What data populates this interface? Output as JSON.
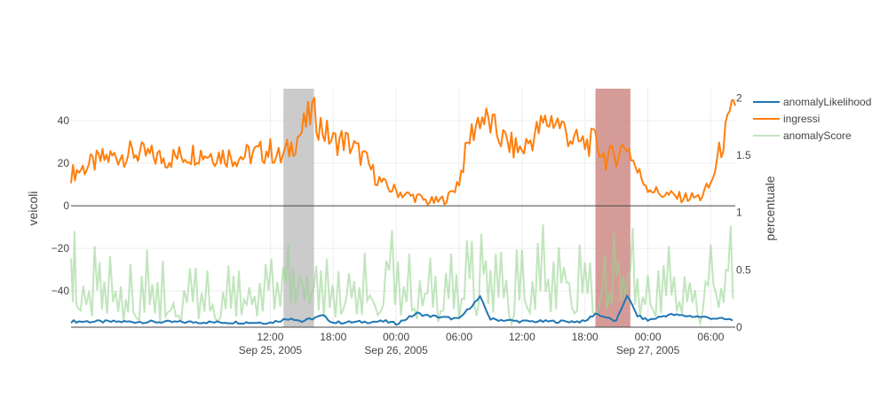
{
  "chart_data": {
    "type": "line",
    "title": "",
    "xlabel": "",
    "ylabel_left": "veicoli",
    "ylabel_right": "percentuale",
    "xlim": [
      "2005-09-24T17:00:00",
      "2005-09-27T08:20:00"
    ],
    "ylim_left": [
      -57,
      55
    ],
    "ylim_right": [
      0,
      2.08
    ],
    "grid": true,
    "legend_position": "top-right",
    "x_ticks": [
      {
        "time": "2005-09-25T12:00:00",
        "label": "12:00",
        "sublabel": "Sep 25, 2005"
      },
      {
        "time": "2005-09-25T18:00:00",
        "label": "18:00",
        "sublabel": ""
      },
      {
        "time": "2005-09-26T00:00:00",
        "label": "00:00",
        "sublabel": "Sep 26, 2005"
      },
      {
        "time": "2005-09-26T06:00:00",
        "label": "06:00",
        "sublabel": ""
      },
      {
        "time": "2005-09-26T12:00:00",
        "label": "12:00",
        "sublabel": ""
      },
      {
        "time": "2005-09-26T18:00:00",
        "label": "18:00",
        "sublabel": ""
      },
      {
        "time": "2005-09-27T00:00:00",
        "label": "00:00",
        "sublabel": "Sep 27, 2005"
      },
      {
        "time": "2005-09-27T06:00:00",
        "label": "06:00",
        "sublabel": ""
      }
    ],
    "y_ticks_left": [
      40,
      20,
      0,
      -20,
      -40
    ],
    "y_ticks_left_labels": [
      "40",
      "20",
      "0",
      "−20",
      "−40"
    ],
    "y_ticks_right": [
      2,
      1.5,
      1,
      0.5,
      0
    ],
    "y_ticks_right_labels": [
      "2",
      "1.5",
      "1",
      "0.5",
      "0"
    ],
    "shaded_regions": [
      {
        "start": "2005-09-25T13:15:00",
        "end": "2005-09-25T16:10:00",
        "color": "#bdbdbd"
      },
      {
        "start": "2005-09-26T19:00:00",
        "end": "2005-09-26T22:20:00",
        "color": "#c9807a"
      }
    ],
    "series": [
      {
        "name": "anomalyLikelihood",
        "axis": "right",
        "color": "#1f77b4",
        "points": [
          [
            "2005-09-24T17:00:00",
            0.05
          ],
          [
            "2005-09-25T12:00:00",
            0.04
          ],
          [
            "2005-09-25T14:00:00",
            0.08
          ],
          [
            "2005-09-25T15:00:00",
            0.05
          ],
          [
            "2005-09-25T17:00:00",
            0.1
          ],
          [
            "2005-09-25T18:00:00",
            0.04
          ],
          [
            "2005-09-25T23:00:00",
            0.05
          ],
          [
            "2005-09-26T00:00:00",
            0.03
          ],
          [
            "2005-09-26T02:00:00",
            0.12
          ],
          [
            "2005-09-26T03:00:00",
            0.1
          ],
          [
            "2005-09-26T06:00:00",
            0.07
          ],
          [
            "2005-09-26T07:00:00",
            0.17
          ],
          [
            "2005-09-26T08:00:00",
            0.26
          ],
          [
            "2005-09-26T09:00:00",
            0.07
          ],
          [
            "2005-09-26T12:00:00",
            0.05
          ],
          [
            "2005-09-26T18:00:00",
            0.05
          ],
          [
            "2005-09-26T19:00:00",
            0.12
          ],
          [
            "2005-09-26T21:00:00",
            0.05
          ],
          [
            "2005-09-26T22:00:00",
            0.28
          ],
          [
            "2005-09-26T23:00:00",
            0.1
          ],
          [
            "2005-09-27T00:00:00",
            0.06
          ],
          [
            "2005-09-27T02:00:00",
            0.11
          ],
          [
            "2005-09-27T05:00:00",
            0.09
          ],
          [
            "2005-09-27T08:20:00",
            0.06
          ]
        ]
      },
      {
        "name": "ingressi",
        "axis": "left",
        "color": "#ff7f0e",
        "points": [
          [
            "2005-09-24T17:00:00",
            15
          ],
          [
            "2005-09-24T20:00:00",
            22
          ],
          [
            "2005-09-24T23:00:00",
            25
          ],
          [
            "2005-09-25T02:00:00",
            22
          ],
          [
            "2005-09-25T05:00:00",
            25
          ],
          [
            "2005-09-25T09:00:00",
            23
          ],
          [
            "2005-09-25T12:00:00",
            26
          ],
          [
            "2005-09-25T13:00:00",
            22
          ],
          [
            "2005-09-25T14:00:00",
            28
          ],
          [
            "2005-09-25T15:00:00",
            35
          ],
          [
            "2005-09-25T16:00:00",
            44
          ],
          [
            "2005-09-25T17:00:00",
            36
          ],
          [
            "2005-09-25T18:00:00",
            30
          ],
          [
            "2005-09-25T19:00:00",
            31
          ],
          [
            "2005-09-25T20:00:00",
            27
          ],
          [
            "2005-09-25T21:00:00",
            22
          ],
          [
            "2005-09-25T22:00:00",
            14
          ],
          [
            "2005-09-25T23:00:00",
            9
          ],
          [
            "2005-09-26T00:00:00",
            7
          ],
          [
            "2005-09-26T01:00:00",
            5
          ],
          [
            "2005-09-26T02:00:00",
            4
          ],
          [
            "2005-09-26T03:00:00",
            2
          ],
          [
            "2005-09-26T04:00:00",
            2
          ],
          [
            "2005-09-26T05:00:00",
            4
          ],
          [
            "2005-09-26T06:00:00",
            12
          ],
          [
            "2005-09-26T07:00:00",
            32
          ],
          [
            "2005-09-26T08:00:00",
            42
          ],
          [
            "2005-09-26T09:00:00",
            38
          ],
          [
            "2005-09-26T10:00:00",
            32
          ],
          [
            "2005-09-26T11:00:00",
            28
          ],
          [
            "2005-09-26T12:00:00",
            26
          ],
          [
            "2005-09-26T13:00:00",
            32
          ],
          [
            "2005-09-26T14:00:00",
            38
          ],
          [
            "2005-09-26T15:00:00",
            41
          ],
          [
            "2005-09-26T16:00:00",
            36
          ],
          [
            "2005-09-26T17:00:00",
            30
          ],
          [
            "2005-09-26T18:00:00",
            29
          ],
          [
            "2005-09-26T19:00:00",
            30
          ],
          [
            "2005-09-26T20:00:00",
            22
          ],
          [
            "2005-09-26T21:00:00",
            24
          ],
          [
            "2005-09-26T22:00:00",
            29
          ],
          [
            "2005-09-26T23:00:00",
            16
          ],
          [
            "2005-09-27T00:00:00",
            9
          ],
          [
            "2005-09-27T01:00:00",
            6
          ],
          [
            "2005-09-27T02:00:00",
            5
          ],
          [
            "2005-09-27T03:00:00",
            4
          ],
          [
            "2005-09-27T04:00:00",
            4
          ],
          [
            "2005-09-27T05:00:00",
            4
          ],
          [
            "2005-09-27T06:00:00",
            10
          ],
          [
            "2005-09-27T07:00:00",
            28
          ],
          [
            "2005-09-27T08:00:00",
            42
          ],
          [
            "2005-09-27T08:20:00",
            47
          ]
        ]
      },
      {
        "name": "anomalyScore",
        "axis": "right",
        "color": "#98d391",
        "points": [
          [
            "2005-09-24T17:00:00",
            0.1
          ],
          [
            "2005-09-24T17:20:00",
            0.7
          ],
          [
            "2005-09-24T17:40:00",
            0.05
          ],
          [
            "2005-09-24T18:10:00",
            0.45
          ],
          [
            "2005-09-24T19:00:00",
            0.15
          ],
          [
            "2005-09-24T19:30:00",
            0.6
          ],
          [
            "2005-09-24T20:10:00",
            0.1
          ],
          [
            "2005-09-24T21:00:00",
            0.4
          ],
          [
            "2005-09-24T22:00:00",
            0.05
          ],
          [
            "2005-09-24T22:40:00",
            0.3
          ],
          [
            "2005-09-24T23:30:00",
            0.08
          ],
          [
            "2005-09-25T00:30:00",
            0.35
          ],
          [
            "2005-09-25T01:30:00",
            0.05
          ],
          [
            "2005-09-25T02:30:00",
            0.25
          ],
          [
            "2005-09-25T03:30:00",
            0.05
          ],
          [
            "2005-09-25T04:20:00",
            0.55
          ],
          [
            "2005-09-25T05:10:00",
            0.1
          ],
          [
            "2005-09-25T06:00:00",
            0.3
          ],
          [
            "2005-09-25T07:00:00",
            0.05
          ],
          [
            "2005-09-25T08:00:00",
            0.35
          ],
          [
            "2005-09-25T09:00:00",
            0.08
          ],
          [
            "2005-09-25T10:00:00",
            0.45
          ],
          [
            "2005-09-25T11:00:00",
            0.05
          ],
          [
            "2005-09-25T11:50:00",
            0.6
          ],
          [
            "2005-09-25T12:40:00",
            0.1
          ],
          [
            "2005-09-25T13:30:00",
            0.75
          ],
          [
            "2005-09-25T14:10:00",
            0.15
          ],
          [
            "2005-09-25T14:50:00",
            0.85
          ],
          [
            "2005-09-25T15:30:00",
            0.2
          ],
          [
            "2005-09-25T16:10:00",
            0.65
          ],
          [
            "2005-09-25T16:50:00",
            0.05
          ],
          [
            "2005-09-25T17:40:00",
            0.3
          ],
          [
            "2005-09-25T18:30:00",
            0.05
          ],
          [
            "2005-09-25T19:30:00",
            0.6
          ],
          [
            "2005-09-25T20:30:00",
            0.05
          ],
          [
            "2005-09-25T21:30:00",
            0.55
          ],
          [
            "2005-09-25T22:30:00",
            0.05
          ],
          [
            "2005-09-25T23:20:00",
            0.95
          ],
          [
            "2005-09-26T00:10:00",
            0.05
          ],
          [
            "2005-09-26T01:00:00",
            0.4
          ],
          [
            "2005-09-26T02:00:00",
            0.1
          ],
          [
            "2005-09-26T03:00:00",
            0.55
          ],
          [
            "2005-09-26T04:00:00",
            0.05
          ],
          [
            "2005-09-26T05:00:00",
            0.45
          ],
          [
            "2005-09-26T06:00:00",
            0.1
          ],
          [
            "2005-09-26T07:00:00",
            0.8
          ],
          [
            "2005-09-26T07:40:00",
            0.15
          ],
          [
            "2005-09-26T08:20:00",
            0.88
          ],
          [
            "2005-09-26T09:00:00",
            0.1
          ],
          [
            "2005-09-26T10:00:00",
            0.6
          ],
          [
            "2005-09-26T11:00:00",
            0.05
          ],
          [
            "2005-09-26T12:00:00",
            0.55
          ],
          [
            "2005-09-26T13:00:00",
            0.1
          ],
          [
            "2005-09-26T14:00:00",
            0.75
          ],
          [
            "2005-09-26T15:00:00",
            0.05
          ],
          [
            "2005-09-26T16:00:00",
            0.95
          ],
          [
            "2005-09-26T17:00:00",
            0.1
          ],
          [
            "2005-09-26T18:00:00",
            0.7
          ],
          [
            "2005-09-26T19:00:00",
            0.05
          ],
          [
            "2005-09-26T19:40:00",
            0.6
          ],
          [
            "2005-09-26T20:20:00",
            0.1
          ],
          [
            "2005-09-26T21:00:00",
            0.85
          ],
          [
            "2005-09-26T21:40:00",
            0.2
          ],
          [
            "2005-09-26T22:20:00",
            0.95
          ],
          [
            "2005-09-26T23:00:00",
            0.05
          ],
          [
            "2005-09-27T00:00:00",
            0.45
          ],
          [
            "2005-09-27T01:00:00",
            0.05
          ],
          [
            "2005-09-27T02:00:00",
            0.65
          ],
          [
            "2005-09-27T03:00:00",
            0.1
          ],
          [
            "2005-09-27T04:00:00",
            0.5
          ],
          [
            "2005-09-27T05:00:00",
            0.05
          ],
          [
            "2005-09-27T06:00:00",
            0.9
          ],
          [
            "2005-09-27T07:00:00",
            0.1
          ],
          [
            "2005-09-27T07:40:00",
            0.95
          ],
          [
            "2005-09-27T08:20:00",
            0.2
          ]
        ]
      }
    ]
  }
}
